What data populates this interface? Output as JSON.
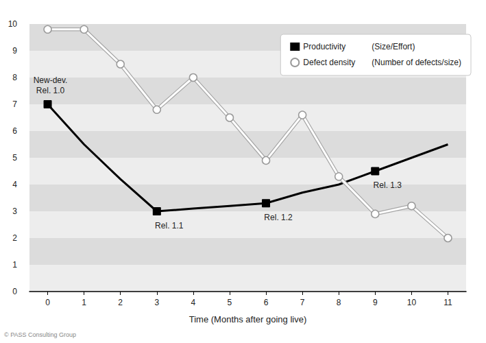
{
  "chart_data": {
    "type": "line",
    "x": [
      0,
      1,
      2,
      3,
      4,
      5,
      6,
      7,
      8,
      9,
      10,
      11
    ],
    "series": [
      {
        "name": "Productivity (Size/Effort)",
        "color": "#000000",
        "marker": "square",
        "values": [
          7,
          5.5,
          4.2,
          3,
          3.1,
          3.2,
          3.3,
          3.7,
          4.0,
          4.5,
          5.0,
          5.5
        ]
      },
      {
        "name": "Defect density (Number of defects/size)",
        "color": "#ffffff",
        "marker": "circle",
        "values": [
          9.8,
          9.8,
          8.5,
          6.8,
          8.0,
          6.5,
          4.9,
          6.6,
          4.3,
          2.9,
          3.2,
          2.0
        ]
      }
    ],
    "xlabel": "Time (Months after going live)",
    "xlim": [
      -0.5,
      11.5
    ],
    "xticks": [
      0,
      1,
      2,
      3,
      4,
      5,
      6,
      7,
      8,
      9,
      10,
      11
    ],
    "ylim": [
      0,
      10
    ],
    "yticks": [
      0,
      1,
      2,
      3,
      4,
      5,
      6,
      7,
      8,
      9,
      10
    ],
    "grid": true,
    "legend": "upper right",
    "annotations": [
      {
        "x": 0,
        "text": "New-dev.\nRel. 1.0"
      },
      {
        "x": 3,
        "text": "Rel. 1.1"
      },
      {
        "x": 6,
        "text": "Rel. 1.2"
      },
      {
        "x": 9,
        "text": "Rel. 1.3"
      }
    ],
    "credit": "© PASS Consulting Group"
  }
}
